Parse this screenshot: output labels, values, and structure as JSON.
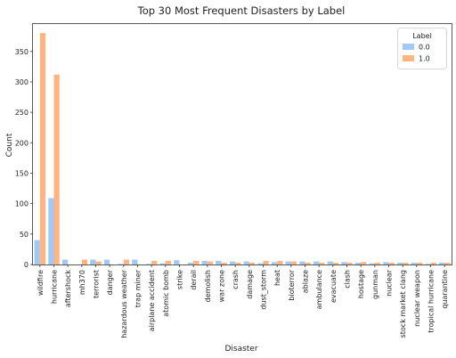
{
  "chart_data": {
    "type": "bar",
    "title": "Top 30 Most Frequent Disasters by Label",
    "xlabel": "Disaster",
    "ylabel": "Count",
    "ylim": [
      0,
      395
    ],
    "yticks": [
      0,
      50,
      100,
      150,
      200,
      250,
      300,
      350
    ],
    "grid": false,
    "legend": {
      "title": "Label",
      "placement": "top-right"
    },
    "categories": [
      "wildfire",
      "hurricane",
      "aftershock",
      "mh370",
      "terrorist",
      "danger",
      "hazardous weather",
      "trap miner",
      "airplane accident",
      "atomic bomb",
      "strike",
      "derail",
      "demolish",
      "war zone",
      "crash",
      "damage",
      "dust_storm",
      "heat",
      "bioterror",
      "ablaze",
      "ambulance",
      "evacuate",
      "clash",
      "hostage",
      "gunman",
      "nuclear",
      "stock market clang",
      "nuclear weapon",
      "tropical hurricane",
      "quarantine"
    ],
    "series": [
      {
        "name": "0.0",
        "color": "#a1c9f4",
        "values": [
          40,
          109,
          8,
          0,
          8,
          8,
          1,
          8,
          1,
          2,
          7,
          3,
          6,
          6,
          5,
          5,
          2,
          4,
          5,
          5,
          5,
          5,
          4,
          3,
          2,
          4,
          3,
          3,
          1,
          3
        ]
      },
      {
        "name": "1.0",
        "color": "#ffb482",
        "values": [
          380,
          312,
          0,
          8,
          5,
          0,
          8,
          0,
          6,
          6,
          0,
          6,
          5,
          3,
          3,
          3,
          6,
          6,
          5,
          3,
          3,
          3,
          3,
          4,
          3,
          3,
          3,
          3,
          3,
          3
        ]
      }
    ]
  }
}
